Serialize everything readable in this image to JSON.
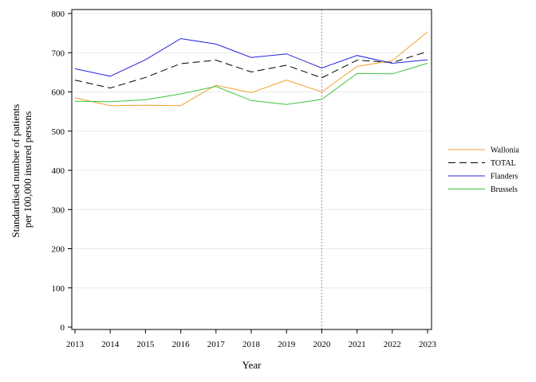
{
  "chart_data": {
    "type": "line",
    "title": "",
    "xlabel": "Year",
    "ylabel_lines": [
      "Standardised number of patients",
      "per 100,000 insured persons"
    ],
    "x": [
      2013,
      2014,
      2015,
      2016,
      2017,
      2018,
      2019,
      2020,
      2021,
      2022,
      2023
    ],
    "x_tick_labels": [
      "2013",
      "2014",
      "2015",
      "2016",
      "2017",
      "2018",
      "2019",
      "2020",
      "2021",
      "2022",
      "2023"
    ],
    "xlim": [
      2013,
      2023
    ],
    "ylim": [
      0,
      800
    ],
    "y_ticks": [
      0,
      100,
      200,
      300,
      400,
      500,
      600,
      700,
      800
    ],
    "y_tick_labels": [
      "0",
      "100",
      "200",
      "300",
      "400",
      "500",
      "600",
      "700",
      "800"
    ],
    "grid": "horizontal, light",
    "reference_line": {
      "x": 2020,
      "style": "dotted",
      "color": "#b07a9a"
    },
    "legend_position": "right",
    "series": [
      {
        "name": "Wallonia",
        "color": "#f5a031",
        "dash": "solid",
        "values": [
          585,
          565,
          566,
          565,
          617,
          598,
          630,
          600,
          665,
          680,
          753
        ]
      },
      {
        "name": "TOTAL",
        "color": "#000000",
        "dash": "dashed",
        "values": [
          630,
          610,
          637,
          672,
          681,
          651,
          668,
          636,
          681,
          675,
          703
        ]
      },
      {
        "name": "Flanders",
        "color": "#2323e0",
        "dash": "solid",
        "values": [
          659,
          640,
          682,
          736,
          722,
          688,
          697,
          661,
          693,
          673,
          682
        ]
      },
      {
        "name": "Brussels",
        "color": "#3cc43c",
        "dash": "solid",
        "values": [
          576,
          575,
          580,
          595,
          614,
          578,
          568,
          581,
          647,
          646,
          673
        ]
      }
    ]
  }
}
